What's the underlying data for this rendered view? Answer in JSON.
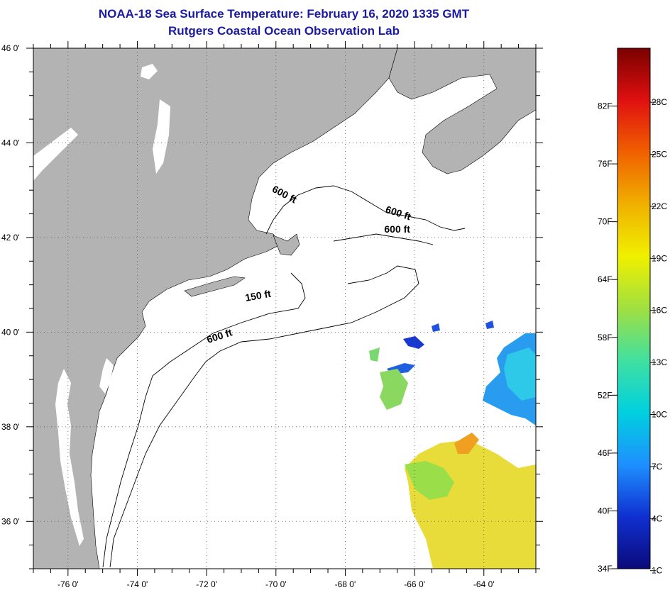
{
  "header": {
    "title": "NOAA-18 Sea Surface Temperature:  February 16, 2020 1335 GMT",
    "subtitle": "Rutgers Coastal Ocean Observation Lab"
  },
  "map": {
    "lon_range": [
      -77.0,
      -62.5
    ],
    "lat_range": [
      35.0,
      46.0
    ],
    "lon_ticks": [
      {
        "value": -76,
        "label": "-76 0'"
      },
      {
        "value": -74,
        "label": "-74 0'"
      },
      {
        "value": -72,
        "label": "-72 0'"
      },
      {
        "value": -70,
        "label": "-70 0'"
      },
      {
        "value": -68,
        "label": "-68 0'"
      },
      {
        "value": -66,
        "label": "-66 0'"
      },
      {
        "value": -64,
        "label": "-64 0'"
      }
    ],
    "lat_ticks": [
      {
        "value": 46,
        "label": "46 0'"
      },
      {
        "value": 44,
        "label": "44 0'"
      },
      {
        "value": 42,
        "label": "42 0'"
      },
      {
        "value": 40,
        "label": "40 0'"
      },
      {
        "value": 38,
        "label": "38 0'"
      },
      {
        "value": 36,
        "label": "36 0'"
      }
    ],
    "land_color": "#b3b3b3",
    "contour_labels": [
      {
        "text": "600 ft",
        "lon": -69.8,
        "lat": 42.85,
        "rotate": 28
      },
      {
        "text": "600 ft",
        "lon": -66.5,
        "lat": 42.45,
        "rotate": 18
      },
      {
        "text": "600 ft",
        "lon": -66.5,
        "lat": 42.1,
        "rotate": 0
      },
      {
        "text": "150 ft",
        "lon": -70.5,
        "lat": 40.7,
        "rotate": -10
      },
      {
        "text": "600 ft",
        "lon": -71.6,
        "lat": 39.85,
        "rotate": -18
      }
    ]
  },
  "colorbar": {
    "min_f": 34,
    "max_f": 88,
    "f_labels": [
      "82F",
      "76F",
      "70F",
      "64F",
      "58F",
      "52F",
      "46F",
      "40F",
      "34F"
    ],
    "c_labels": [
      "28C",
      "25C",
      "22C",
      "19C",
      "16C",
      "13C",
      "10C",
      "7C",
      "4C",
      "1C"
    ],
    "stops": [
      "#0a0a7a",
      "#1030d0",
      "#1e90ff",
      "#00d0e0",
      "#40e0a0",
      "#a0e040",
      "#f0f000",
      "#f0b000",
      "#f06000",
      "#e01010",
      "#7a0000"
    ]
  }
}
